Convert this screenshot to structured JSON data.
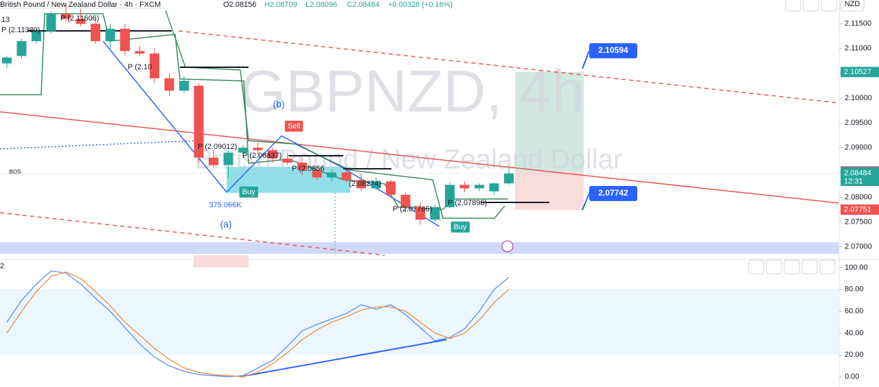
{
  "header": {
    "symbol": "British Pound / New Zealand Dollar · 4h · FXCM",
    "open": "O2.08156",
    "high": "H2.08709",
    "low": "L2.08096",
    "close": "C2.08484",
    "change": "+0.00328 (+0.16%)",
    "currency": "NZD"
  },
  "watermark": {
    "ticker": "GBPNZD, 4h",
    "name": "British Pound / New Zealand Dollar"
  },
  "annotations": [
    "(b)",
    "(a)",
    "Sell",
    "Buy",
    "Buy",
    "BOS",
    "375.066K",
    "P (2.09012)",
    "P (2.08837)",
    "P (2.0856",
    "(2.08274)",
    "P (2.07766)",
    "P (2.07898)",
    "P (2.10",
    "P (2.11380)",
    "P (2.11606)",
    "13"
  ],
  "price_tags": [
    {
      "value": 2.10527,
      "color": "#26a69a"
    },
    {
      "value": 2.08521,
      "color": "#787b86"
    },
    {
      "value": 2.08484,
      "color": "#26a69a",
      "timer": "12:31"
    },
    {
      "value": 2.07751,
      "color": "#ef5350"
    }
  ],
  "callouts": [
    2.10594,
    2.07742
  ],
  "chart_data": [
    {
      "type": "candlestick",
      "up_color": "#26a69a",
      "down_color": "#ef5350",
      "open": [
        2.107,
        2.1085,
        2.1115,
        2.1135,
        2.117,
        2.116,
        2.115,
        2.1115,
        2.114,
        2.1095,
        2.109,
        2.104,
        2.1015,
        2.1025,
        2.088,
        2.0865,
        2.089,
        2.09,
        2.0895,
        2.0878,
        2.087,
        2.0855,
        2.084,
        2.085,
        2.0835,
        2.0818,
        2.0832,
        2.0805,
        2.078,
        2.0755,
        2.078,
        2.0825,
        2.0818,
        2.0812,
        2.0828
      ],
      "high": [
        2.1085,
        2.112,
        2.114,
        2.1175,
        2.119,
        2.118,
        2.116,
        2.115,
        2.115,
        2.1105,
        2.11,
        2.105,
        2.1045,
        2.103,
        2.0895,
        2.0895,
        2.0905,
        2.091,
        2.09,
        2.089,
        2.088,
        2.0862,
        2.0855,
        2.0855,
        2.0848,
        2.084,
        2.0835,
        2.081,
        2.079,
        2.0785,
        2.083,
        2.0832,
        2.0828,
        2.083,
        2.0862
      ],
      "low": [
        2.106,
        2.108,
        2.111,
        2.113,
        2.1155,
        2.1145,
        2.111,
        2.11,
        2.1085,
        2.1085,
        2.103,
        2.1005,
        2.101,
        2.087,
        2.086,
        2.084,
        2.088,
        2.0885,
        2.087,
        2.0865,
        2.0845,
        2.0835,
        2.0832,
        2.083,
        2.0812,
        2.0815,
        2.08,
        2.077,
        2.0745,
        2.075,
        2.0778,
        2.081,
        2.0812,
        2.0805,
        2.0825
      ],
      "close": [
        2.1082,
        2.1115,
        2.1135,
        2.117,
        2.116,
        2.115,
        2.1115,
        2.114,
        2.1095,
        2.109,
        2.104,
        2.1015,
        2.1035,
        2.088,
        2.0865,
        2.089,
        2.09,
        2.0895,
        2.0878,
        2.087,
        2.0855,
        2.084,
        2.085,
        2.0835,
        2.0818,
        2.0832,
        2.0805,
        2.078,
        2.0755,
        2.078,
        2.0825,
        2.0818,
        2.0825,
        2.0828,
        2.0848
      ],
      "ylim": [
        2.0683,
        2.1198
      ],
      "yticks": [
        {
          "value": 2.115,
          "label": "2.11500"
        },
        {
          "value": 2.11,
          "label": "2.11000"
        },
        {
          "value": 2.105,
          "label": "2.10500"
        },
        {
          "value": 2.1,
          "label": "2.10000"
        },
        {
          "value": 2.095,
          "label": "2.09500"
        },
        {
          "value": 2.09,
          "label": "2.09000"
        },
        {
          "value": 2.085,
          "label": "2.08500"
        },
        {
          "value": 2.08,
          "label": "2.08000"
        },
        {
          "value": 2.075,
          "label": "2.07500"
        },
        {
          "value": 2.07,
          "label": "2.07000"
        }
      ]
    },
    {
      "type": "line",
      "title": "2",
      "series": [
        {
          "color": "#5b8def",
          "values": [
            50,
            70,
            85,
            97,
            95,
            85,
            72,
            60,
            45,
            30,
            18,
            10,
            5,
            2,
            1,
            0,
            1,
            8,
            15,
            28,
            42,
            48,
            53,
            58,
            66,
            62,
            66,
            57,
            45,
            33,
            36,
            44,
            60,
            80,
            91
          ]
        },
        {
          "color": "#f08a3c",
          "values": [
            40,
            60,
            78,
            92,
            96,
            90,
            78,
            65,
            50,
            38,
            26,
            16,
            8,
            4,
            2,
            1,
            0,
            4,
            12,
            22,
            34,
            43,
            50,
            55,
            61,
            64,
            64,
            60,
            50,
            40,
            35,
            40,
            52,
            68,
            80
          ]
        }
      ],
      "ylim": [
        -9.4,
        106.3
      ],
      "yticks": [
        {
          "value": 100,
          "label": "100.00"
        },
        {
          "value": 80,
          "label": "80.00"
        },
        {
          "value": 60,
          "label": "60.00"
        },
        {
          "value": 40,
          "label": "40.00"
        },
        {
          "value": 20,
          "label": "20.00"
        },
        {
          "value": 0,
          "label": "0.00"
        }
      ]
    }
  ]
}
